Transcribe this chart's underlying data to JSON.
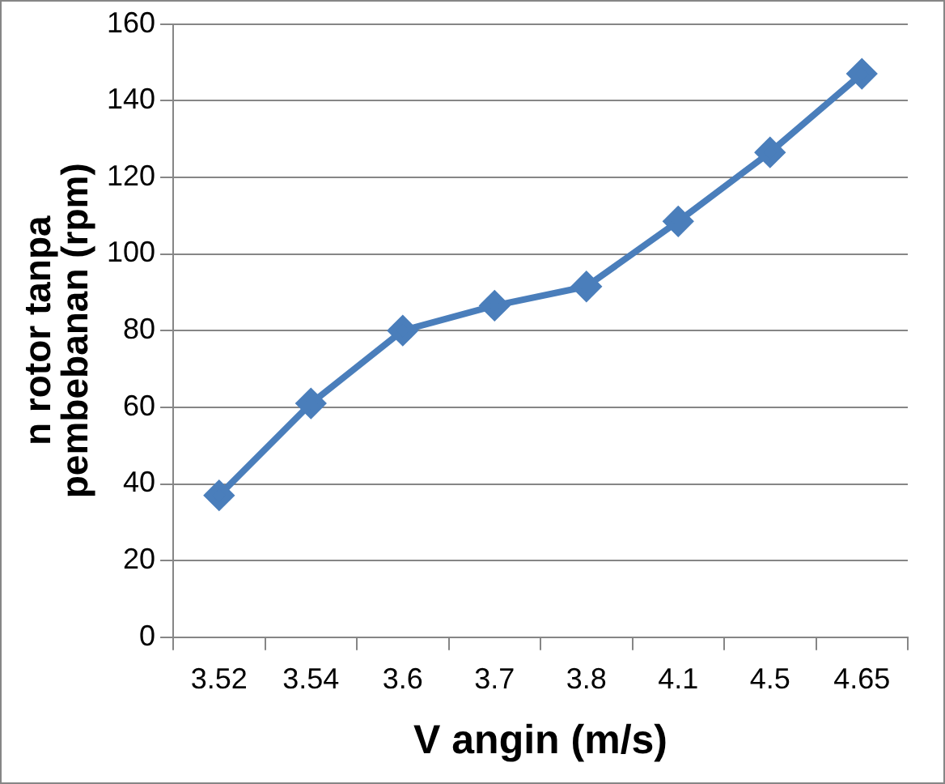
{
  "chart_data": {
    "type": "line",
    "xlabel": "V angin (m/s)",
    "ylabel": "n rotor tanpa pembebanan (rpm)",
    "categories": [
      "3.52",
      "3.54",
      "3.6",
      "3.7",
      "3.8",
      "4.1",
      "4.5",
      "4.65"
    ],
    "series": [
      {
        "color": "#4a7ebb",
        "values": [
          37,
          61,
          80,
          86.5,
          91.5,
          108.5,
          126.5,
          147
        ]
      }
    ],
    "ylim": [
      0,
      160
    ],
    "yticks": [
      0,
      20,
      40,
      60,
      80,
      100,
      120,
      140,
      160
    ],
    "grid": "y",
    "legend": false,
    "marker": "diamond",
    "line_style": "solid"
  }
}
